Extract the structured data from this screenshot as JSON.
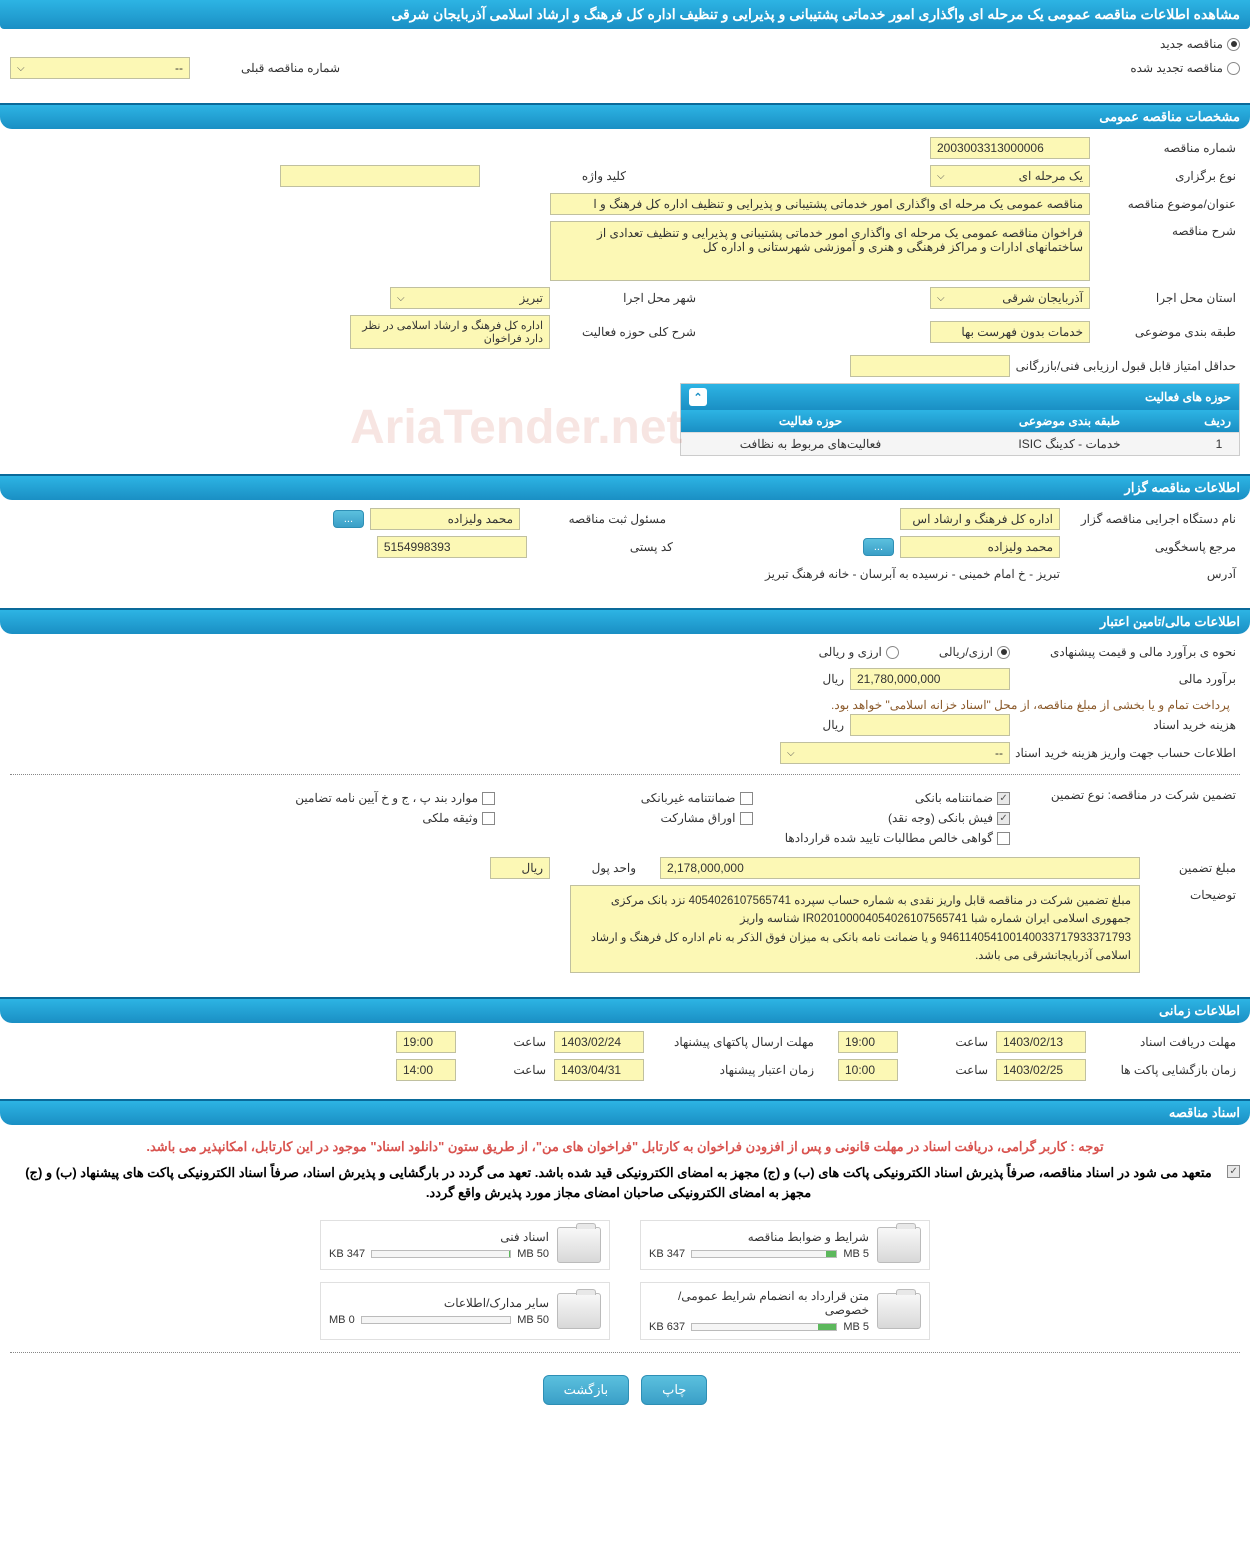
{
  "page_title": "مشاهده اطلاعات مناقصه عمومی یک مرحله ای واگذاری امور خدماتی پشتیبانی و پذیرایی و تنظیف اداره کل فرهنگ و ارشاد اسلامی آذربایجان شرقی",
  "header_radio": {
    "new": {
      "label": "مناقصه جدید",
      "checked": true
    },
    "renewed": {
      "label": "مناقصه تجدید شده",
      "checked": false
    },
    "prev_number_label": "شماره مناقصه قبلی",
    "prev_number_value": "--"
  },
  "sections": {
    "general": "مشخصات مناقصه عمومی",
    "activities": "حوزه های فعالیت",
    "organizer": "اطلاعات مناقصه گزار",
    "financial": "اطلاعات مالی/تامین اعتبار",
    "timing": "اطلاعات زمانی",
    "documents": "اسناد مناقصه"
  },
  "general": {
    "number_label": "شماره مناقصه",
    "number": "2003003313000006",
    "type_label": "نوع برگزاری",
    "type": "یک مرحله ای",
    "keyword_label": "کلید واژه",
    "keyword": "",
    "subject_label": "عنوان/موضوع مناقصه",
    "subject": "مناقصه عمومی یک مرحله ای واگذاری امور خدماتی پشتیبانی و پذیرایی و تنظیف اداره کل فرهنگ و ا",
    "desc_label": "شرح مناقصه",
    "desc": "فراخوان مناقصه عمومی یک مرحله ای واگذاری امور خدماتی پشتیبانی و پذیرایی و تنظیف تعدادی از ساختمانهای ادارات و مراکز فرهنگی و هنری و آموزشی شهرستانی و اداره کل",
    "province_label": "استان محل اجرا",
    "province": "آذربایجان شرقی",
    "city_label": "شهر محل اجرا",
    "city": "تبریز",
    "category_label": "طبقه بندی موضوعی",
    "category": "خدمات بدون فهرست بها",
    "scope_label": "شرح کلی حوزه فعالیت",
    "scope": "اداره کل فرهنگ و ارشاد اسلامی در نظر دارد فراخوان",
    "min_score_label": "حداقل امتیاز قابل قبول ارزیابی فنی/بازرگانی",
    "min_score": ""
  },
  "activity_table": {
    "col_idx": "ردیف",
    "col_cat": "طبقه بندی موضوعی",
    "col_scope": "حوزه فعالیت",
    "rows": [
      {
        "idx": "1",
        "cat": "خدمات - کدینگ ISIC",
        "scope": "فعالیت‌های مربوط به نظافت"
      }
    ]
  },
  "organizer": {
    "exec_label": "نام دستگاه اجرایی مناقصه گزار",
    "exec": "اداره کل فرهنگ و ارشاد اس",
    "reg_label": "مسئول ثبت مناقصه",
    "reg": "محمد ولیزاده",
    "resp_label": "مرجع پاسخگویی",
    "resp": "محمد ولیزاده",
    "post_label": "کد پستی",
    "post": "5154998393",
    "addr_label": "آدرس",
    "addr": "تبریز - خ امام خمینی - نرسیده به آبرسان - خانه فرهنگ تبریز",
    "more": "..."
  },
  "financial": {
    "estimate_type_label": "نحوه ی برآورد مالی و قیمت پیشنهادی",
    "opt_rial": "ارزی/ریالی",
    "opt_currency": "ارزی و ریالی",
    "estimate_label": "برآورد مالی",
    "estimate": "21,780,000,000",
    "unit": "ریال",
    "note": "پرداخت تمام و یا بخشی از مبلغ مناقصه، از محل \"اسناد خزانه اسلامی\" خواهد بود.",
    "doc_cost_label": "هزینه خرید اسناد",
    "doc_cost": "",
    "account_label": "اطلاعات حساب جهت واریز هزینه خرید اسناد",
    "account": "--",
    "guarantee_type_label": "تضمین شرکت در مناقصه:    نوع تضمین",
    "g1": "ضمانتنامه بانکی",
    "g2": "ضمانتنامه غیربانکی",
    "g3": "موارد بند پ ، ج و خ آیین نامه تضامین",
    "g4": "فیش بانکی (وجه نقد)",
    "g5": "اوراق مشارکت",
    "g6": "وثیقه ملکی",
    "g7": "گواهی خالص مطالبات تایید شده قراردادها",
    "g1_checked": true,
    "g4_checked": true,
    "amount_label": "مبلغ تضمین",
    "amount": "2,178,000,000",
    "amount_unit_label": "واحد پول",
    "amount_unit": "ریال",
    "desc_label": "توضیحات",
    "desc": "مبلغ تضمین شرکت در مناقصه قابل واریز نقدی به شماره حساب سپرده 4054026107565741 نزد بانک مرکزی جمهوری اسلامی ایران  شماره شبا IR020100004054026107565741 شناسه واریز 946114054100140033717933371793 و یا ضمانت نامه بانکی به میزان فوق الذکر به نام اداره کل فرهنگ و ارشاد اسلامی آذربایجانشرقی می باشد."
  },
  "timing": {
    "receive_label": "مهلت دریافت اسناد",
    "receive_date": "1403/02/13",
    "receive_time_label": "ساعت",
    "receive_time": "19:00",
    "submit_label": "مهلت ارسال پاکتهای پیشنهاد",
    "submit_date": "1403/02/24",
    "submit_time": "19:00",
    "open_label": "زمان بازگشایی پاکت ها",
    "open_date": "1403/02/25",
    "open_time": "10:00",
    "valid_label": "زمان اعتبار پیشنهاد",
    "valid_date": "1403/04/31",
    "valid_time": "14:00"
  },
  "docs": {
    "red_note": "توجه : کاربر گرامی، دریافت اسناد در مهلت قانونی و پس از افزودن فراخوان به کارتابل \"فراخوان های من\"، از طریق ستون \"دانلود اسناد\" موجود در این کارتابل، امکانپذیر می باشد.",
    "bold_note": "متعهد می شود در اسناد مناقصه، صرفاً پذیرش اسناد الکترونیکی پاکت های (ب) و (ج) مجهز به امضای الکترونیکی قید شده باشد. تعهد می گردد در بارگشایی و پذیرش اسناد، صرفاً اسناد الکترونیکی پاکت های پیشنهاد (ب) و (ج) مجهز به امضای الکترونیکی صاحبان امضای مجاز مورد پذیرش واقع گردد.",
    "items": [
      {
        "title": "شرایط و ضوابط مناقصه",
        "used": "347 KB",
        "total": "5 MB",
        "pct": 7
      },
      {
        "title": "اسناد فنی",
        "used": "347 KB",
        "total": "50 MB",
        "pct": 1
      },
      {
        "title": "متن قرارداد به انضمام شرایط عمومی/خصوصی",
        "used": "637 KB",
        "total": "5 MB",
        "pct": 13
      },
      {
        "title": "سایر مدارک/اطلاعات",
        "used": "0 MB",
        "total": "50 MB",
        "pct": 0
      }
    ]
  },
  "footer": {
    "print": "چاپ",
    "back": "بازگشت"
  },
  "watermark": "AriaTender.net"
}
